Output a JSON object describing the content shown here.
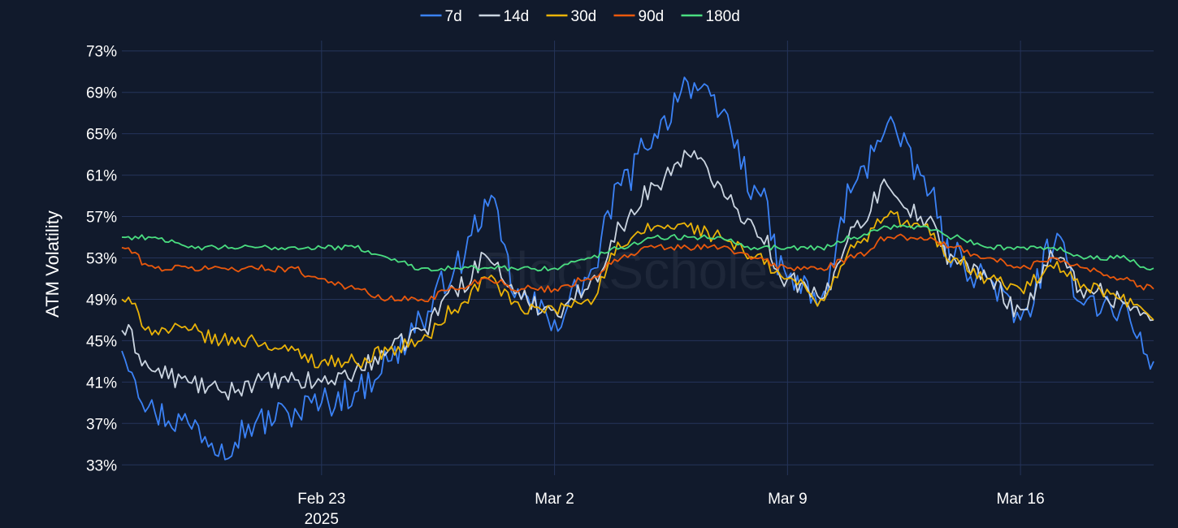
{
  "chart_data": {
    "type": "line",
    "title": "",
    "ylabel": "ATM Volatility",
    "ylim": [
      32,
      74
    ],
    "yticks": [
      33,
      37,
      41,
      45,
      49,
      53,
      57,
      61,
      65,
      69,
      73
    ],
    "ytick_labels": [
      "33%",
      "37%",
      "41%",
      "45%",
      "49%",
      "53%",
      "57%",
      "61%",
      "65%",
      "69%",
      "73%"
    ],
    "xlim": [
      "2025-02-17",
      "2025-03-20"
    ],
    "xticks": [
      {
        "date": "2025-02-23",
        "label": "Feb 23",
        "sublabel": "2025"
      },
      {
        "date": "2025-03-02",
        "label": "Mar 2",
        "sublabel": ""
      },
      {
        "date": "2025-03-09",
        "label": "Mar 9",
        "sublabel": ""
      },
      {
        "date": "2025-03-16",
        "label": "Mar 16",
        "sublabel": ""
      }
    ],
    "grid": true,
    "legend_position": "top-center",
    "watermark": "BlockScholes",
    "colors": {
      "background": "#111a2c",
      "grid": "#25345a",
      "text": "#ffffff"
    },
    "x": [
      "2025-02-17",
      "2025-02-18",
      "2025-02-19",
      "2025-02-20",
      "2025-02-21",
      "2025-02-22",
      "2025-02-23",
      "2025-02-24",
      "2025-02-25",
      "2025-02-26",
      "2025-02-27",
      "2025-02-28",
      "2025-03-01",
      "2025-03-02",
      "2025-03-03",
      "2025-03-04",
      "2025-03-05",
      "2025-03-06",
      "2025-03-07",
      "2025-03-08",
      "2025-03-09",
      "2025-03-10",
      "2025-03-11",
      "2025-03-12",
      "2025-03-13",
      "2025-03-14",
      "2025-03-15",
      "2025-03-16",
      "2025-03-17",
      "2025-03-18",
      "2025-03-19",
      "2025-03-20"
    ],
    "series": [
      {
        "name": "7d",
        "color": "#3b82f6",
        "values": [
          44,
          38,
          37,
          35,
          37,
          38,
          39,
          40,
          43,
          47,
          52,
          58,
          49,
          47,
          51,
          60,
          65,
          70,
          67,
          60,
          51,
          49,
          60,
          66,
          61,
          53,
          51,
          47,
          54,
          49,
          48,
          43
        ]
      },
      {
        "name": "14d",
        "color": "#cbd5e1",
        "values": [
          46,
          42,
          41,
          40,
          41,
          41,
          41,
          42,
          44,
          46,
          50,
          53,
          49,
          48,
          50,
          56,
          60,
          63,
          60,
          56,
          51,
          49,
          56,
          60,
          57,
          53,
          51,
          48,
          53,
          50,
          49,
          47
        ]
      },
      {
        "name": "30d",
        "color": "#eab308",
        "values": [
          49,
          46,
          46,
          45,
          45,
          44,
          43,
          43,
          44,
          45,
          48,
          51,
          48,
          48,
          49,
          54,
          56,
          56,
          55,
          53,
          51,
          49,
          54,
          57,
          56,
          53,
          51,
          50,
          52,
          50,
          49,
          47
        ]
      },
      {
        "name": "90d",
        "color": "#ea580c",
        "values": [
          54,
          52,
          52,
          52,
          52,
          52,
          51,
          50,
          49,
          49,
          50,
          51,
          50,
          50,
          51,
          53,
          54,
          54,
          54,
          53,
          52,
          52,
          53,
          55,
          55,
          54,
          53,
          52,
          53,
          52,
          51,
          50
        ]
      },
      {
        "name": "180d",
        "color": "#4ade80",
        "values": [
          55,
          55,
          54,
          54,
          54,
          54,
          54,
          54,
          53,
          52,
          52,
          52,
          52,
          52,
          53,
          54,
          55,
          55,
          55,
          54,
          54,
          54,
          55,
          56,
          56,
          55,
          54,
          54,
          54,
          53,
          53,
          52
        ]
      }
    ]
  }
}
